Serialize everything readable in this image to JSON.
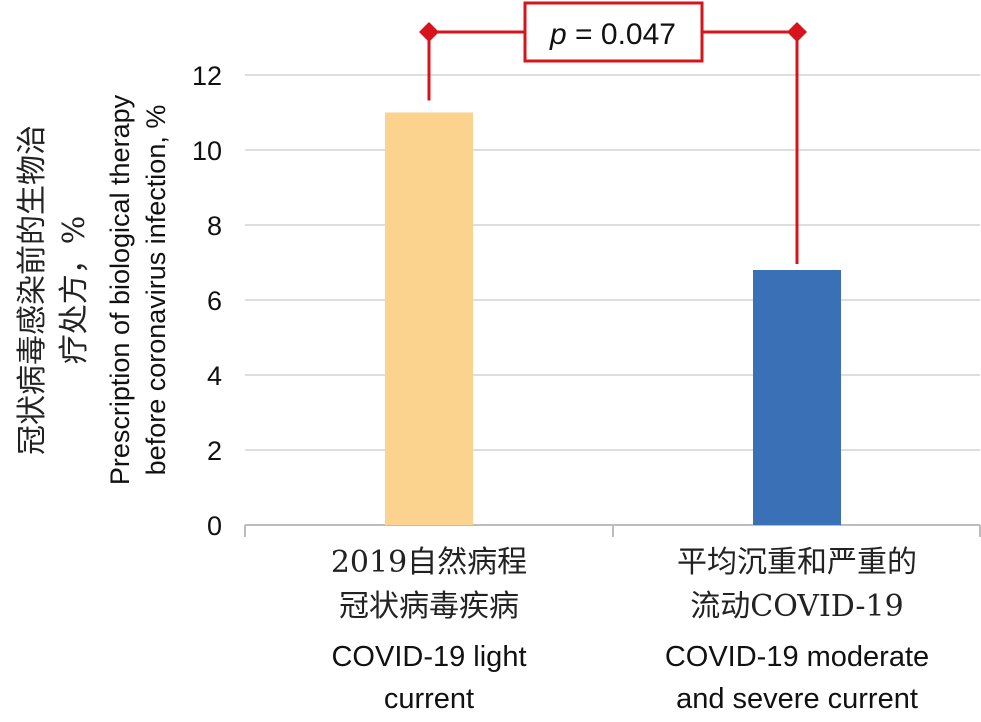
{
  "chart_data": {
    "type": "bar",
    "categories": [
      {
        "label_zh_line1": "2019自然病程",
        "label_zh_line2": "冠状病毒疾病",
        "label_en_line1": "COVID-19 light",
        "label_en_line2": "current"
      },
      {
        "label_zh_line1": "平均沉重和严重的",
        "label_zh_line2": "流动COVID-19",
        "label_en_line1": "COVID-19 moderate",
        "label_en_line2": "and severe current"
      }
    ],
    "values": [
      11.0,
      6.8
    ],
    "bar_colors": [
      "#FBD28E",
      "#3A70B5"
    ],
    "ylim": [
      0,
      12
    ],
    "yticks": [
      "0",
      "2",
      "4",
      "6",
      "8",
      "10",
      "12"
    ],
    "grid": true,
    "ylabel_zh_line1": "冠状病毒感染前的生物治",
    "ylabel_zh_line2": "疗处方，%",
    "ylabel_en_line1": "Prescription of biological therapy",
    "ylabel_en_line2": "before coronavirus infection, %",
    "annotation": {
      "p_symbol": "p",
      "p_rest": " = 0.047",
      "color": "#D7141C"
    }
  }
}
